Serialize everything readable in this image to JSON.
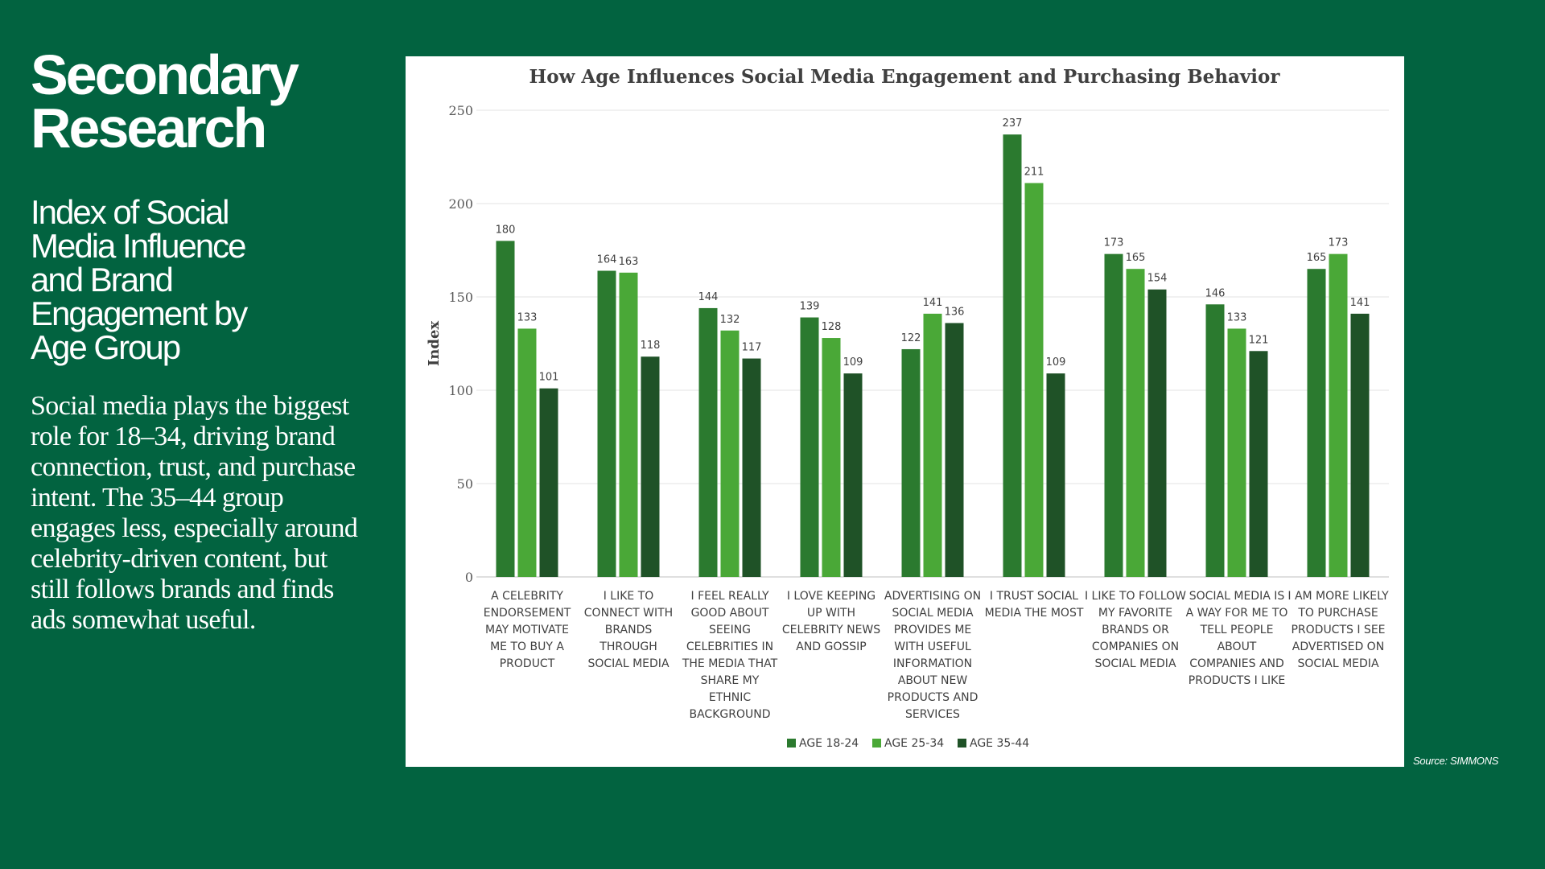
{
  "slide": {
    "title_line1": "Secondary",
    "title_line2": "Research",
    "subtitle": "Index of Social Media Influence and Brand Engagement by Age Group",
    "body": "Social media plays the biggest role for 18–34, driving brand connection, trust, and purchase intent. The 35–44 group engages less, especially around celebrity-driven content, but still follows brands and finds ads somewhat useful.",
    "source": "Source: SIMMONS"
  },
  "colors": {
    "background": "#026340",
    "series_18_24": "#2b7a2f",
    "series_25_34": "#4aa837",
    "series_35_44": "#1f5227"
  },
  "chart_data": {
    "type": "bar",
    "title": "How Age Influences Social Media Engagement and Purchasing Behavior",
    "xlabel": "",
    "ylabel": "Index",
    "ylim": [
      0,
      250
    ],
    "yticks": [
      0,
      50,
      100,
      150,
      200,
      250
    ],
    "grid": true,
    "legend_position": "bottom",
    "categories": [
      [
        "A CELEBRITY",
        "ENDORSEMENT",
        "MAY MOTIVATE",
        "ME TO BUY A",
        "PRODUCT"
      ],
      [
        "I LIKE TO",
        "CONNECT WITH",
        "BRANDS",
        "THROUGH",
        "SOCIAL MEDIA"
      ],
      [
        "I FEEL REALLY",
        "GOOD ABOUT",
        "SEEING",
        "CELEBRITIES IN",
        "THE MEDIA THAT",
        "SHARE MY",
        "ETHNIC",
        "BACKGROUND"
      ],
      [
        "I LOVE KEEPING",
        "UP WITH",
        "CELEBRITY NEWS",
        "AND GOSSIP"
      ],
      [
        "ADVERTISING ON",
        "SOCIAL MEDIA",
        "PROVIDES ME",
        "WITH USEFUL",
        "INFORMATION",
        "ABOUT NEW",
        "PRODUCTS AND",
        "SERVICES"
      ],
      [
        "I TRUST SOCIAL",
        "MEDIA THE MOST"
      ],
      [
        "I LIKE TO FOLLOW",
        "MY FAVORITE",
        "BRANDS OR",
        "COMPANIES ON",
        "SOCIAL MEDIA"
      ],
      [
        "SOCIAL MEDIA IS",
        "A WAY FOR ME TO",
        "TELL PEOPLE",
        "ABOUT",
        "COMPANIES AND",
        "PRODUCTS I LIKE"
      ],
      [
        "I AM MORE LIKELY",
        "TO PURCHASE",
        "PRODUCTS I SEE",
        "ADVERTISED ON",
        "SOCIAL MEDIA"
      ]
    ],
    "series": [
      {
        "name": "AGE 18-24",
        "values": [
          180,
          164,
          144,
          139,
          122,
          237,
          173,
          146,
          165
        ]
      },
      {
        "name": "AGE 25-34",
        "values": [
          133,
          163,
          132,
          128,
          141,
          211,
          165,
          133,
          173
        ]
      },
      {
        "name": "AGE 35-44",
        "values": [
          101,
          118,
          117,
          109,
          136,
          109,
          154,
          121,
          141
        ]
      }
    ]
  }
}
